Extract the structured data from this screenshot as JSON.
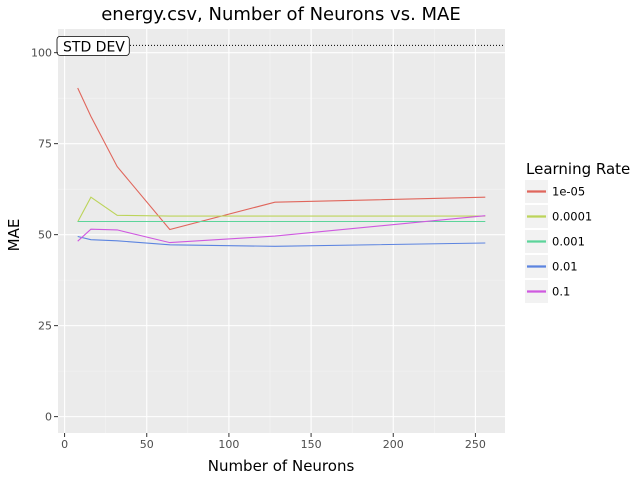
{
  "chart_data": {
    "type": "line",
    "title": "energy.csv, Number of Neurons vs. MAE",
    "xlabel": "Number of Neurons",
    "ylabel": "MAE",
    "xlim": [
      -4,
      268
    ],
    "ylim": [
      -4.5,
      106.5
    ],
    "x_ticks": [
      0,
      50,
      100,
      150,
      200,
      250
    ],
    "y_ticks": [
      0,
      25,
      50,
      75,
      100
    ],
    "grid": true,
    "legend_title": "Learning Rate",
    "legend_position": "right",
    "annotation": {
      "label": "STD DEV",
      "y": 102
    },
    "series": [
      {
        "name": "1e-05",
        "color": "#e0665c",
        "x": [
          8,
          16,
          32,
          64,
          128,
          256
        ],
        "y": [
          90.3,
          82.5,
          68.7,
          51.4,
          58.9,
          60.3
        ]
      },
      {
        "name": "0.0001",
        "color": "#bcd45a",
        "x": [
          8,
          16,
          32,
          64,
          128,
          256
        ],
        "y": [
          53.5,
          60.3,
          55.3,
          55.1,
          55.1,
          55.1
        ]
      },
      {
        "name": "0.001",
        "color": "#5cd49a",
        "x": [
          8,
          16,
          32,
          64,
          128,
          256
        ],
        "y": [
          53.6,
          53.6,
          53.6,
          53.6,
          53.6,
          53.6
        ]
      },
      {
        "name": "0.01",
        "color": "#5c84e0",
        "x": [
          8,
          16,
          32,
          64,
          128,
          256
        ],
        "y": [
          49.5,
          48.6,
          48.3,
          47.2,
          46.8,
          47.7
        ]
      },
      {
        "name": "0.1",
        "color": "#cf59e0",
        "x": [
          8,
          16,
          32,
          64,
          128,
          256
        ],
        "y": [
          48.2,
          51.5,
          51.3,
          47.8,
          49.6,
          55.2
        ]
      }
    ]
  }
}
